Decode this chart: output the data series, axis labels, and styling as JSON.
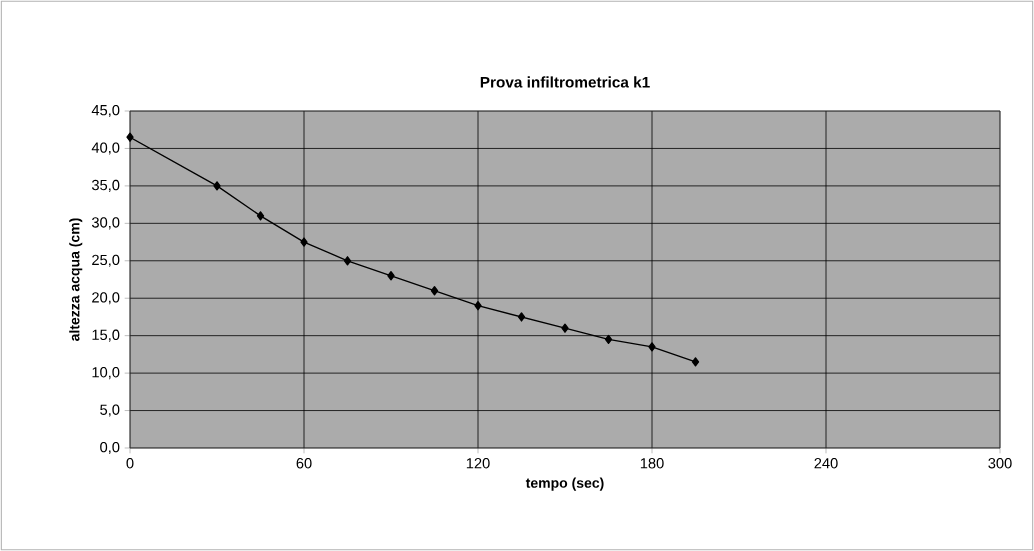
{
  "chart_data": {
    "type": "line",
    "title": "Prova infiltrometrica k1",
    "xlabel": "tempo (sec)",
    "ylabel": "altezza acqua (cm)",
    "x": [
      0,
      30,
      45,
      60,
      75,
      90,
      105,
      120,
      135,
      150,
      165,
      180,
      195
    ],
    "series": [
      {
        "color": "#000000",
        "values": [
          41.5,
          35.0,
          31.0,
          27.5,
          25.0,
          23.0,
          21.0,
          19.0,
          17.5,
          16.0,
          14.5,
          13.5,
          11.5
        ]
      }
    ],
    "xlim": [
      0,
      300
    ],
    "xticks": [
      0,
      60,
      120,
      180,
      240,
      300
    ],
    "ylim": [
      0,
      45
    ],
    "yticks": [
      {
        "value": 0,
        "label": "0,0"
      },
      {
        "value": 5,
        "label": "5,0"
      },
      {
        "value": 10,
        "label": "10,0"
      },
      {
        "value": 15,
        "label": "15,0"
      },
      {
        "value": 20,
        "label": "20,0"
      },
      {
        "value": 25,
        "label": "25,0"
      },
      {
        "value": 30,
        "label": "30,0"
      },
      {
        "value": 35,
        "label": "35,0"
      },
      {
        "value": 40,
        "label": "40,0"
      },
      {
        "value": 45,
        "label": "45,0"
      }
    ],
    "grid": true,
    "marker": "diamond",
    "line_style": "solid"
  }
}
